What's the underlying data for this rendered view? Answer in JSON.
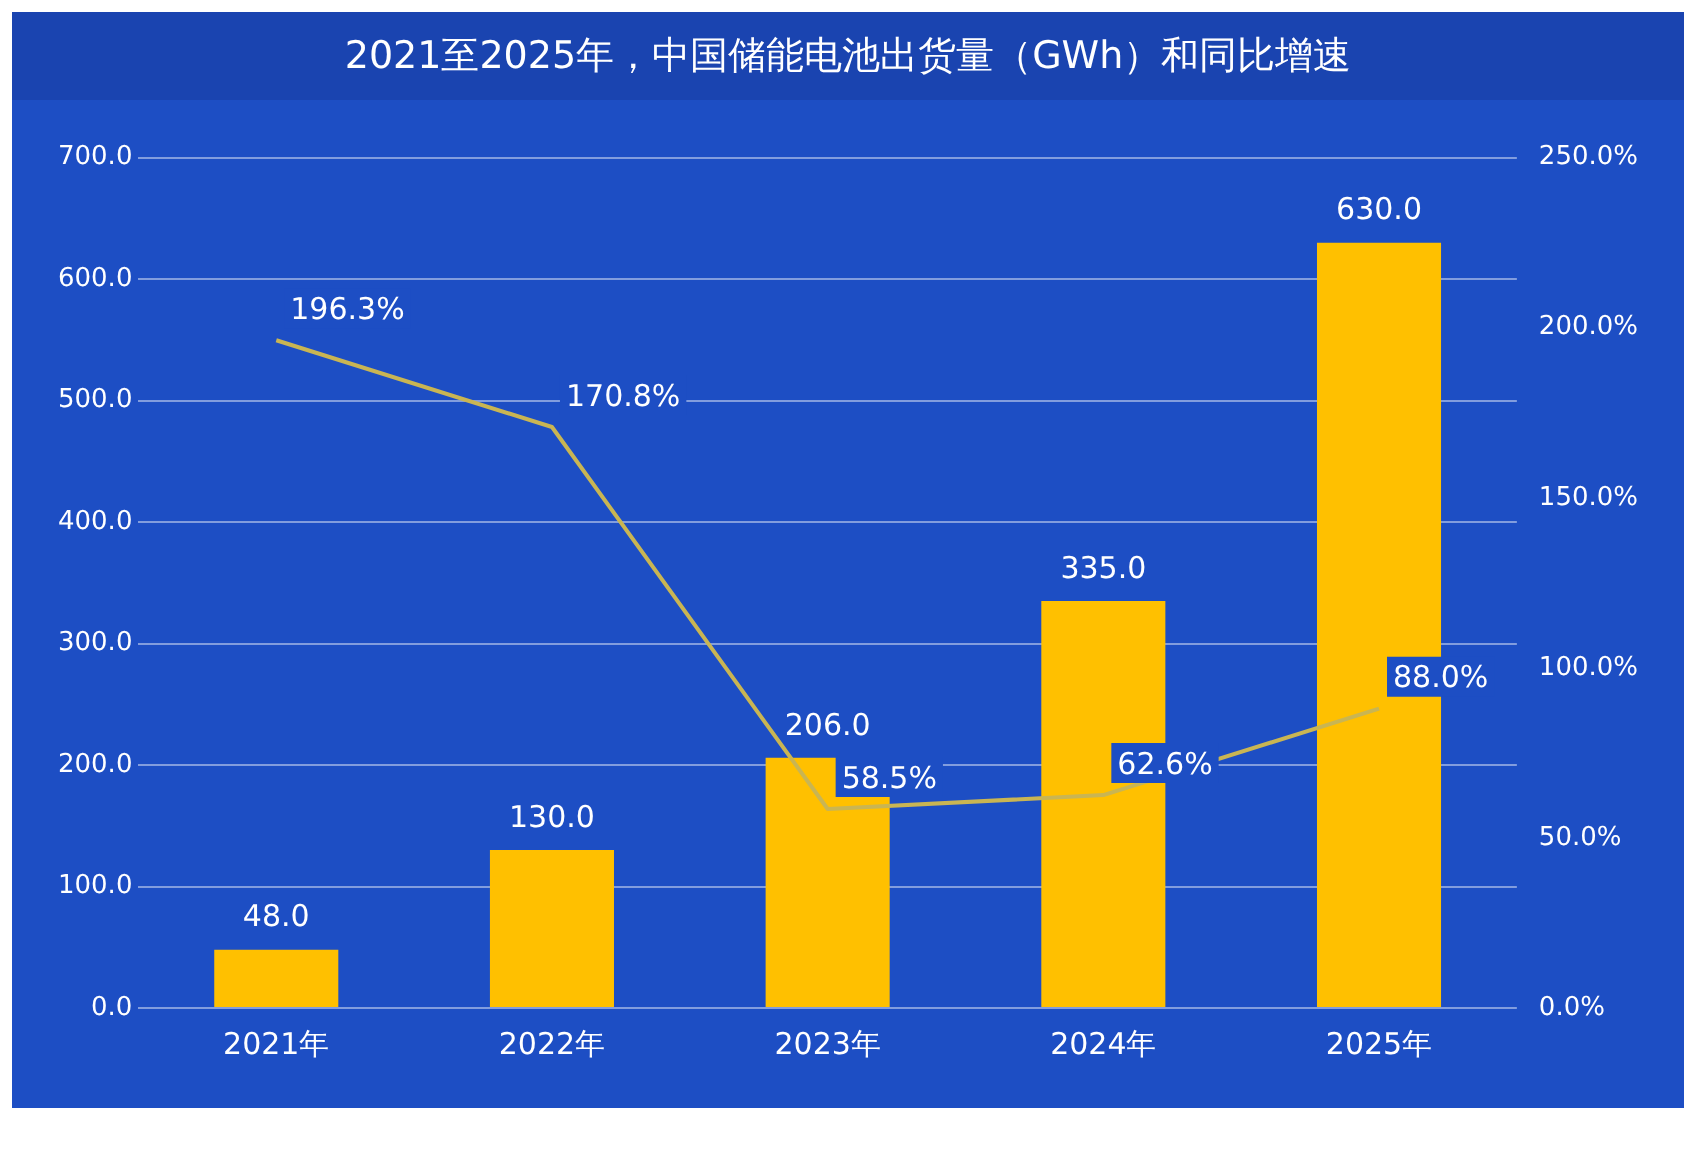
{
  "chart_data": {
    "type": "bar",
    "title": "2021至2025年，中国储能电池出货量（GWh）和同比增速",
    "categories": [
      "2021年",
      "2022年",
      "2023年",
      "2024年",
      "2025年"
    ],
    "series": [
      {
        "color": "#ffc000",
        "values": [
          48,
          130,
          206,
          335,
          630
        ],
        "value_labels": [
          "48.0",
          "130.0",
          "206.0",
          "335.0",
          "630.0"
        ]
      },
      {
        "type": "line",
        "axis": "y2",
        "color": "#c9b553",
        "values": [
          196.3,
          170.8,
          58.5,
          62.6,
          88
        ],
        "value_labels": [
          "196.3%",
          "170.8%",
          "58.5%",
          "62.6%",
          "88.0%"
        ]
      }
    ],
    "ylim": [
      0,
      700
    ],
    "yticks": [
      {
        "value": 0,
        "label": "0.0"
      },
      {
        "value": 100,
        "label": "100.0"
      },
      {
        "value": 200,
        "label": "200.0"
      },
      {
        "value": 300,
        "label": "300.0"
      },
      {
        "value": 400,
        "label": "400.0"
      },
      {
        "value": 500,
        "label": "500.0"
      },
      {
        "value": 600,
        "label": "600.0"
      },
      {
        "value": 700,
        "label": "700.0"
      }
    ],
    "y2lim": [
      0,
      250
    ],
    "y2ticks": [
      {
        "value": 0,
        "label": "0.0%"
      },
      {
        "value": 50,
        "label": "50.0%"
      },
      {
        "value": 100,
        "label": "100.0%"
      },
      {
        "value": 150,
        "label": "150.0%"
      },
      {
        "value": 200,
        "label": "200.0%"
      },
      {
        "value": 250,
        "label": "250.0%"
      }
    ],
    "grid": "y",
    "legend": false,
    "marker": "none",
    "line_style": "solid"
  }
}
